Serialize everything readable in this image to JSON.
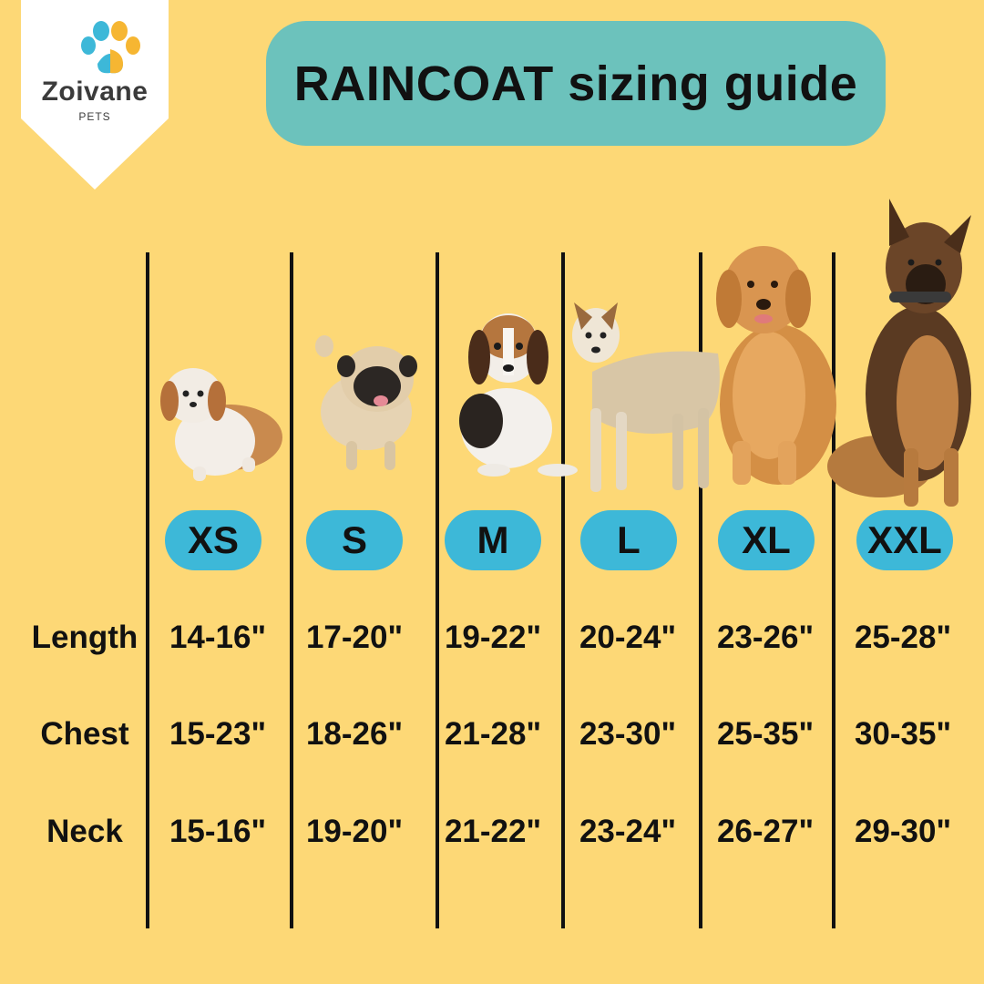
{
  "brand": {
    "name": "Zoivane",
    "sub": "PETS"
  },
  "title": "RAINCOAT sizing guide",
  "colors": {
    "background": "#FDD876",
    "title_pill": "#6CC2BC",
    "size_pill": "#3DB8D8",
    "paw_blue": "#3DB8D8",
    "paw_yellow": "#F6B632"
  },
  "sizes": [
    "XS",
    "S",
    "M",
    "L",
    "XL",
    "XXL"
  ],
  "dogs": [
    "shih-tzu",
    "pug",
    "beagle-puppy",
    "mixed-breed",
    "golden-retriever",
    "german-shepherd"
  ],
  "rows": [
    {
      "label": "Length",
      "values": [
        "14-16\"",
        "17-20\"",
        "19-22\"",
        "20-24\"",
        "23-26\"",
        "25-28\""
      ]
    },
    {
      "label": "Chest",
      "values": [
        "15-23\"",
        "18-26\"",
        "21-28\"",
        "23-30\"",
        "25-35\"",
        "30-35\""
      ]
    },
    {
      "label": "Neck",
      "values": [
        "15-16\"",
        "19-20\"",
        "21-22\"",
        "23-24\"",
        "26-27\"",
        "29-30\""
      ]
    }
  ]
}
